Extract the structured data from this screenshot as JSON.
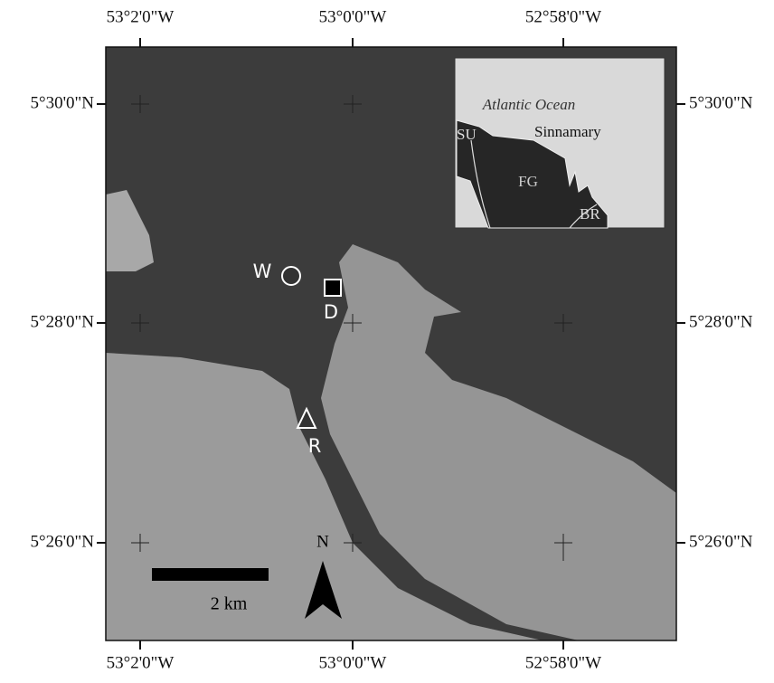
{
  "axes": {
    "top": [
      "53°2'0\"W",
      "53°0'0\"W",
      "52°58'0\"W"
    ],
    "bottom": [
      "53°2'0\"W",
      "53°0'0\"W",
      "52°58'0\"W"
    ],
    "left": [
      "5°30'0\"N",
      "5°28'0\"N",
      "5°26'0\"N"
    ],
    "right": [
      "5°30'0\"N",
      "5°28'0\"N",
      "5°26'0\"N"
    ]
  },
  "sites": [
    {
      "label": "W"
    },
    {
      "label": "D"
    },
    {
      "label": "R"
    }
  ],
  "inset": {
    "title": "Atlantic Ocean",
    "labels": [
      "SU",
      "Sinnamary",
      "FG",
      "BR"
    ]
  },
  "scale_bar": "2 km",
  "north": "N"
}
